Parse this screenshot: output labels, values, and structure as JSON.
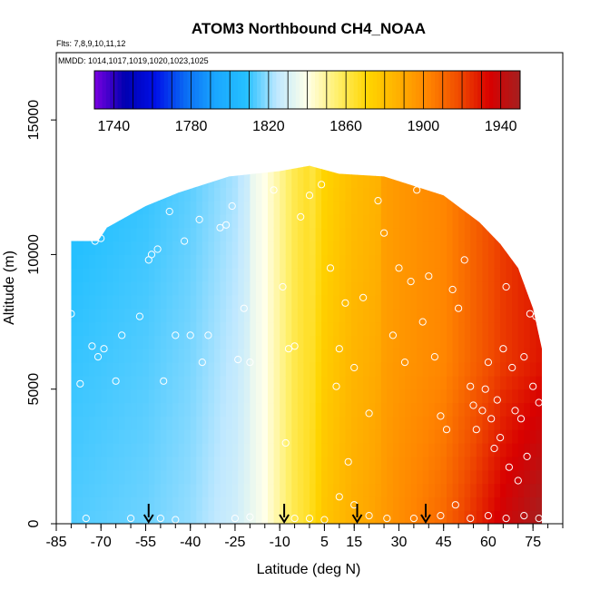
{
  "chart_data": {
    "type": "heatmap",
    "title": "ATOM3 Northbound CH4_NOAA",
    "subtitle_flights": "Flts: 7,8,9,10,11,12",
    "subtitle_dates": "MMDD: 1014,1017,1019,1020,1023,1025",
    "xlabel": "Latitude (deg N)",
    "ylabel": "Altitude (m)",
    "xlim": [
      -85,
      85
    ],
    "ylim": [
      0,
      17500
    ],
    "x_ticks": [
      -85,
      -70,
      -55,
      -40,
      -25,
      -10,
      5,
      15,
      30,
      45,
      60,
      75
    ],
    "x_tick_labels": [
      "-85",
      "-70",
      "-55",
      "-40",
      "-25",
      "-10",
      "5",
      "15",
      "30",
      "45",
      "60",
      "75"
    ],
    "y_ticks": [
      0,
      5000,
      10000,
      15000
    ],
    "y_tick_labels": [
      "0",
      "5000",
      "10000",
      "15000"
    ],
    "colorbar": {
      "range": [
        1730,
        1950
      ],
      "tick_values": [
        1740,
        1780,
        1820,
        1860,
        1900,
        1940
      ],
      "tick_labels": [
        "1740",
        "1780",
        "1820",
        "1860",
        "1900",
        "1940"
      ],
      "colors": [
        "#7a00e0",
        "#0000b0",
        "#0010e8",
        "#0a6cf4",
        "#1aa8ff",
        "#25c0ff",
        "#bfe8ff",
        "#ffffe8",
        "#ffef6a",
        "#ffd500",
        "#ffb000",
        "#ff8400",
        "#f04a00",
        "#d80000",
        "#a52020"
      ]
    },
    "arrows_latitude": [
      -54,
      -8.5,
      16,
      39
    ],
    "section": {
      "x_range": [
        -80,
        78
      ],
      "top_altitude_by_lat": [
        [
          -80,
          10500
        ],
        [
          -71,
          10500
        ],
        [
          -68,
          11000
        ],
        [
          -55,
          11800
        ],
        [
          -44,
          12300
        ],
        [
          -27,
          12900
        ],
        [
          -10,
          13100
        ],
        [
          0,
          13300
        ],
        [
          10,
          13000
        ],
        [
          25,
          12900
        ],
        [
          45,
          12200
        ],
        [
          57,
          11200
        ],
        [
          64,
          10400
        ],
        [
          70,
          9500
        ],
        [
          75,
          8000
        ],
        [
          78,
          6500
        ]
      ],
      "bottom_altitude": 0
    },
    "field_profile": {
      "lat": [
        -80,
        -55,
        -40,
        -25,
        -15,
        -10,
        -5,
        0,
        5,
        15,
        30,
        45,
        55,
        65,
        78
      ],
      "ch4": [
        1813,
        1816,
        1820,
        1828,
        1840,
        1850,
        1860,
        1866,
        1878,
        1888,
        1896,
        1902,
        1912,
        1922,
        1930
      ]
    },
    "observation_points": [
      [
        -80,
        7800
      ],
      [
        -77,
        5200
      ],
      [
        -73,
        6600
      ],
      [
        -72,
        10500
      ],
      [
        -71,
        6200
      ],
      [
        -70,
        10600
      ],
      [
        -69,
        6500
      ],
      [
        -65,
        5300
      ],
      [
        -63,
        7000
      ],
      [
        -57,
        7700
      ],
      [
        -54,
        9800
      ],
      [
        -53,
        10000
      ],
      [
        -51,
        10200
      ],
      [
        -49,
        5300
      ],
      [
        -47,
        11600
      ],
      [
        -45,
        7000
      ],
      [
        -42,
        10500
      ],
      [
        -40,
        7000
      ],
      [
        -37,
        11300
      ],
      [
        -36,
        6000
      ],
      [
        -34,
        7000
      ],
      [
        -30,
        11000
      ],
      [
        -28,
        11100
      ],
      [
        -26,
        11800
      ],
      [
        -24,
        6100
      ],
      [
        -22,
        8000
      ],
      [
        -20,
        6000
      ],
      [
        -12,
        12400
      ],
      [
        -9,
        8800
      ],
      [
        -8,
        3000
      ],
      [
        -7,
        6500
      ],
      [
        -5,
        6600
      ],
      [
        -3,
        11400
      ],
      [
        0,
        12200
      ],
      [
        4,
        12600
      ],
      [
        7,
        9500
      ],
      [
        9,
        5100
      ],
      [
        10,
        6500
      ],
      [
        12,
        8200
      ],
      [
        13,
        2300
      ],
      [
        15,
        5800
      ],
      [
        18,
        8400
      ],
      [
        20,
        4100
      ],
      [
        23,
        12000
      ],
      [
        25,
        10800
      ],
      [
        28,
        7000
      ],
      [
        30,
        9500
      ],
      [
        32,
        6000
      ],
      [
        34,
        9000
      ],
      [
        36,
        12400
      ],
      [
        38,
        7500
      ],
      [
        40,
        9200
      ],
      [
        42,
        6200
      ],
      [
        44,
        4000
      ],
      [
        46,
        3500
      ],
      [
        48,
        8700
      ],
      [
        50,
        8000
      ],
      [
        52,
        9800
      ],
      [
        54,
        5100
      ],
      [
        55,
        4400
      ],
      [
        56,
        3500
      ],
      [
        58,
        4200
      ],
      [
        59,
        5000
      ],
      [
        60,
        6000
      ],
      [
        61,
        3900
      ],
      [
        62,
        2800
      ],
      [
        63,
        4600
      ],
      [
        64,
        3200
      ],
      [
        65,
        6500
      ],
      [
        66,
        8800
      ],
      [
        67,
        2100
      ],
      [
        68,
        5800
      ],
      [
        69,
        4200
      ],
      [
        70,
        1600
      ],
      [
        71,
        3900
      ],
      [
        72,
        6200
      ],
      [
        73,
        2500
      ],
      [
        74,
        7800
      ],
      [
        75,
        5100
      ],
      [
        76,
        7700
      ],
      [
        77,
        4500
      ],
      [
        -75,
        200
      ],
      [
        -60,
        200
      ],
      [
        -50,
        200
      ],
      [
        -45,
        150
      ],
      [
        -25,
        200
      ],
      [
        -20,
        250
      ],
      [
        -5,
        200
      ],
      [
        0,
        200
      ],
      [
        5,
        150
      ],
      [
        10,
        1000
      ],
      [
        15,
        700
      ],
      [
        20,
        300
      ],
      [
        26,
        200
      ],
      [
        35,
        200
      ],
      [
        44,
        300
      ],
      [
        49,
        700
      ],
      [
        54,
        200
      ],
      [
        60,
        300
      ],
      [
        66,
        200
      ],
      [
        72,
        300
      ],
      [
        77,
        200
      ]
    ]
  }
}
